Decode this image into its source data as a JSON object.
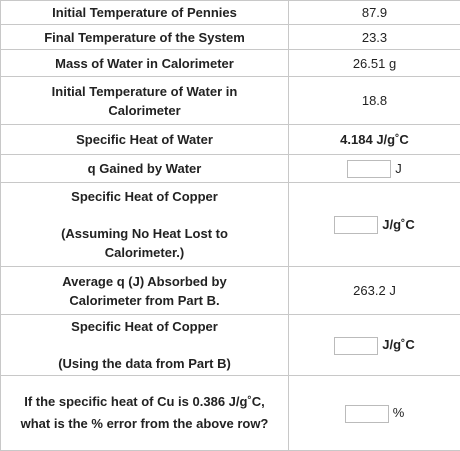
{
  "table": {
    "rows": [
      {
        "label": "Initial Temperature of Pennies",
        "value": "87.9"
      },
      {
        "label": "Final Temperature of the System",
        "value": "23.3"
      },
      {
        "label": "Mass of Water in Calorimeter",
        "value": "26.51 g"
      },
      {
        "label": "Initial Temperature of Water in Calorimeter",
        "value": "18.8"
      },
      {
        "label": "Specific Heat of Water",
        "value": "4.184 J/g˚C"
      },
      {
        "label": "q Gained by Water",
        "unit": "J"
      },
      {
        "label": "Specific Heat of Copper",
        "note": "(Assuming No Heat Lost to Calorimeter.)",
        "unit": "J/g˚C"
      },
      {
        "label": "Average q (J) Absorbed by Calorimeter from Part B.",
        "value": "263.2 J"
      },
      {
        "label": "Specific Heat of Copper",
        "note": "(Using the data from Part B)",
        "unit": "J/g˚C"
      },
      {
        "label": "If the specific heat of Cu is 0.386 J/g˚C, what is the % error from the above row?",
        "unit": "%"
      }
    ]
  }
}
